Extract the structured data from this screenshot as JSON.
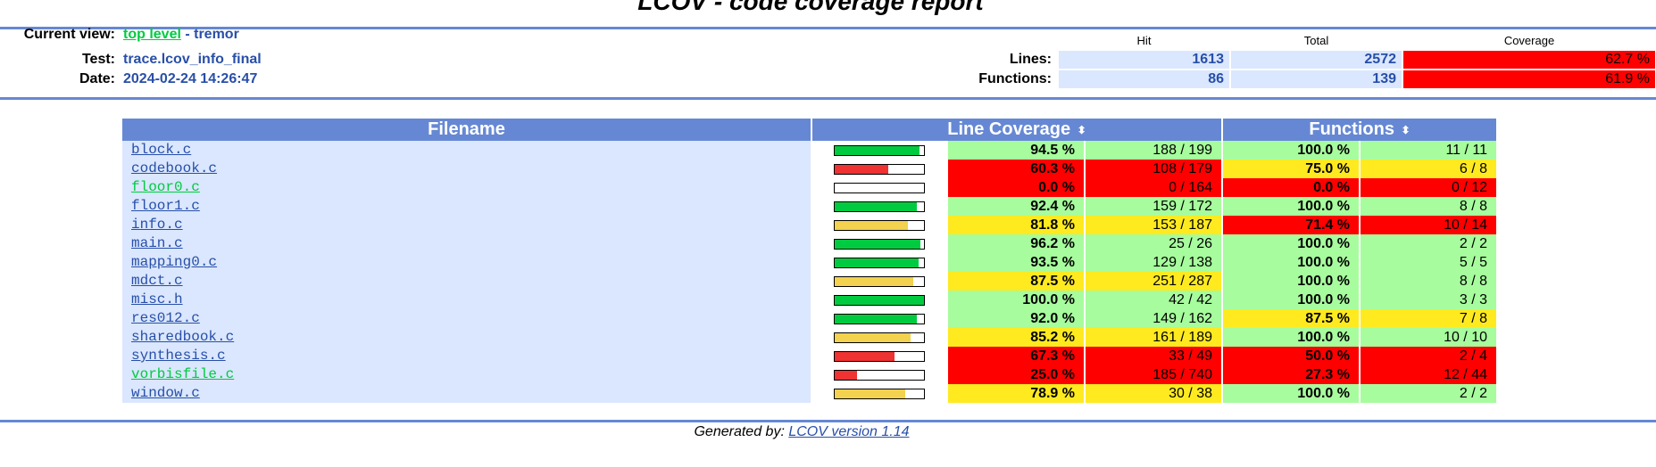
{
  "title": "LCOV - code coverage report",
  "header": {
    "current_view_label": "Current view:",
    "top_level_link": "top level",
    "separator": " - ",
    "current_dir": "tremor",
    "test_label": "Test:",
    "test_value": "trace.lcov_info_final",
    "date_label": "Date:",
    "date_value": "2024-02-24 14:26:47"
  },
  "summary": {
    "hit_header": "Hit",
    "total_header": "Total",
    "coverage_header": "Coverage",
    "lines_label": "Lines:",
    "lines_hit": "1613",
    "lines_total": "2572",
    "lines_coverage": "62.7 %",
    "functions_label": "Functions:",
    "functions_hit": "86",
    "functions_total": "139",
    "functions_coverage": "61.9 %"
  },
  "table": {
    "filename_header": "Filename",
    "line_coverage_header": "Line Coverage",
    "functions_header": "Functions",
    "sort_icon": "⬍",
    "rows": [
      {
        "file": "block.c",
        "bar": 0.945,
        "lpct": "94.5 %",
        "lnum": "188 / 199",
        "lclass": "hi",
        "fpct": "100.0 %",
        "fnum": "11 / 11",
        "fclass": "hi",
        "low": false
      },
      {
        "file": "codebook.c",
        "bar": 0.603,
        "lpct": "60.3 %",
        "lnum": "108 / 179",
        "lclass": "lo",
        "fpct": "75.0 %",
        "fnum": "6 / 8",
        "fclass": "med",
        "low": false
      },
      {
        "file": "floor0.c",
        "bar": 0.0,
        "lpct": "0.0 %",
        "lnum": "0 / 164",
        "lclass": "lo",
        "fpct": "0.0 %",
        "fnum": "0 / 12",
        "fclass": "lo",
        "low": true
      },
      {
        "file": "floor1.c",
        "bar": 0.924,
        "lpct": "92.4 %",
        "lnum": "159 / 172",
        "lclass": "hi",
        "fpct": "100.0 %",
        "fnum": "8 / 8",
        "fclass": "hi",
        "low": false
      },
      {
        "file": "info.c",
        "bar": 0.818,
        "lpct": "81.8 %",
        "lnum": "153 / 187",
        "lclass": "med",
        "fpct": "71.4 %",
        "fnum": "10 / 14",
        "fclass": "lo",
        "low": false
      },
      {
        "file": "main.c",
        "bar": 0.962,
        "lpct": "96.2 %",
        "lnum": "25 / 26",
        "lclass": "hi",
        "fpct": "100.0 %",
        "fnum": "2 / 2",
        "fclass": "hi",
        "low": false
      },
      {
        "file": "mapping0.c",
        "bar": 0.935,
        "lpct": "93.5 %",
        "lnum": "129 / 138",
        "lclass": "hi",
        "fpct": "100.0 %",
        "fnum": "5 / 5",
        "fclass": "hi",
        "low": false
      },
      {
        "file": "mdct.c",
        "bar": 0.875,
        "lpct": "87.5 %",
        "lnum": "251 / 287",
        "lclass": "med",
        "fpct": "100.0 %",
        "fnum": "8 / 8",
        "fclass": "hi",
        "low": false
      },
      {
        "file": "misc.h",
        "bar": 1.0,
        "lpct": "100.0 %",
        "lnum": "42 / 42",
        "lclass": "hi",
        "fpct": "100.0 %",
        "fnum": "3 / 3",
        "fclass": "hi",
        "low": false
      },
      {
        "file": "res012.c",
        "bar": 0.92,
        "lpct": "92.0 %",
        "lnum": "149 / 162",
        "lclass": "hi",
        "fpct": "87.5 %",
        "fnum": "7 / 8",
        "fclass": "med",
        "low": false
      },
      {
        "file": "sharedbook.c",
        "bar": 0.852,
        "lpct": "85.2 %",
        "lnum": "161 / 189",
        "lclass": "med",
        "fpct": "100.0 %",
        "fnum": "10 / 10",
        "fclass": "hi",
        "low": false
      },
      {
        "file": "synthesis.c",
        "bar": 0.673,
        "lpct": "67.3 %",
        "lnum": "33 / 49",
        "lclass": "lo",
        "fpct": "50.0 %",
        "fnum": "2 / 4",
        "fclass": "lo",
        "low": false
      },
      {
        "file": "vorbisfile.c",
        "bar": 0.25,
        "lpct": "25.0 %",
        "lnum": "185 / 740",
        "lclass": "lo",
        "fpct": "27.3 %",
        "fnum": "12 / 44",
        "fclass": "lo",
        "low": true
      },
      {
        "file": "window.c",
        "bar": 0.789,
        "lpct": "78.9 %",
        "lnum": "30 / 38",
        "lclass": "med",
        "fpct": "100.0 %",
        "fnum": "2 / 2",
        "fclass": "hi",
        "low": false
      }
    ]
  },
  "footer": {
    "generated_by": "Generated by: ",
    "link_text": "LCOV version 1.14"
  },
  "colors": {
    "accent": "#6688d4",
    "hi": "#a7fc9d",
    "med": "#ffea20",
    "lo": "#ff0000",
    "bar_hi": "#00cb40",
    "bar_med": "#f2d24e",
    "bar_lo": "#ef3232"
  }
}
